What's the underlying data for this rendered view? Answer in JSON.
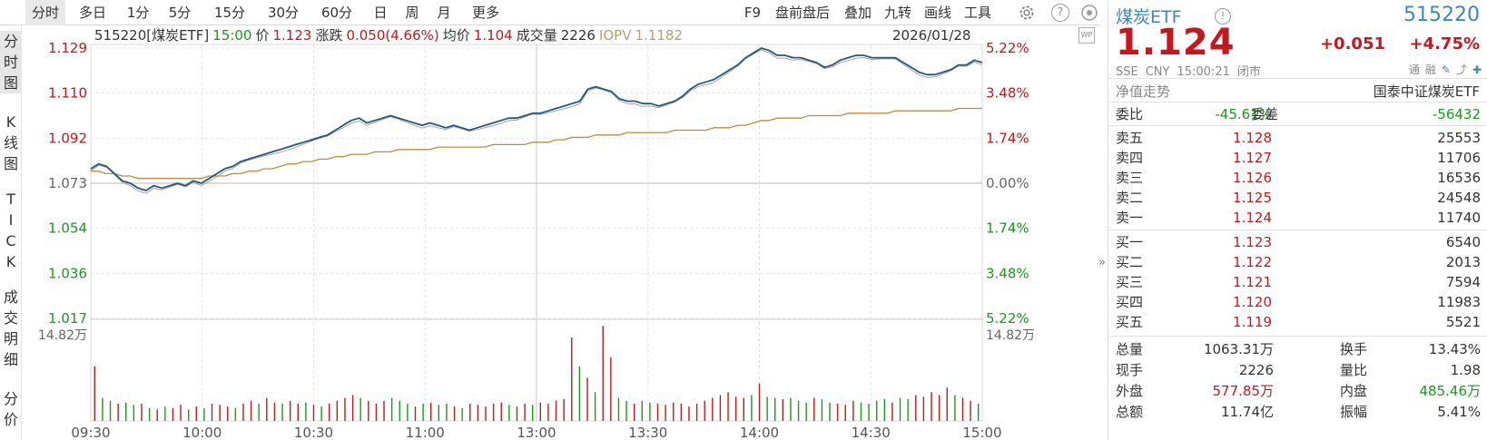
{
  "toolbar": {
    "periods": [
      "分时",
      "多日",
      "1分",
      "5分",
      "15分",
      "30分",
      "60分",
      "日",
      "周",
      "月",
      "更多"
    ],
    "active_period": "分时",
    "tools": [
      "F9",
      "盘前盘后",
      "叠加",
      "九转",
      "画线",
      "工具"
    ],
    "settings_icon": "gear-icon",
    "help_icon": "question-icon",
    "help_text": "?"
  },
  "side_tabs": [
    "分\n时\n图",
    "K\n线\n图",
    "T\nI\nC\nK",
    "成\n交\n明\n细",
    "分\n价"
  ],
  "chart_info": {
    "code_name": "515220[煤炭ETF]",
    "time": "15:00",
    "price_label": "价",
    "price": "1.123",
    "change_label": "涨跌",
    "change": "0.050(4.66%)",
    "avg_label": "均价",
    "avg": "1.104",
    "volume_label": "成交量",
    "volume": "2226",
    "iopv_label": "IOPV",
    "iopv": "1.1182",
    "date": "2026/01/28",
    "wp_badge": "WP"
  },
  "collapse_arrow": "»",
  "colors": {
    "up": "#c8161d",
    "down": "#1a9a1a",
    "price_line": "#1f5a82",
    "avg_line": "#c08a3e",
    "nav_line": "#b89a9a",
    "accent_blue": "#3b86c8"
  },
  "chart_data": {
    "type": "line",
    "x_ticks": [
      "09:30",
      "10:00",
      "10:30",
      "11:00",
      "13:00",
      "13:30",
      "14:00",
      "14:30",
      "15:00"
    ],
    "y_left_ticks": [
      "1.129",
      "1.110",
      "1.092",
      "1.073",
      "1.054",
      "1.036",
      "1.017"
    ],
    "y_right_ticks": [
      "5.22%",
      "3.48%",
      "1.74%",
      "0.00%",
      "1.74%",
      "3.48%",
      "5.22%"
    ],
    "y_range": [
      1.017,
      1.129
    ],
    "prev_close": 1.073,
    "volume_label": "14.82万",
    "grid": true,
    "series": [
      {
        "values": [
          1.079,
          1.081,
          1.08,
          1.077,
          1.074,
          1.073,
          1.071,
          1.07,
          1.072,
          1.071,
          1.072,
          1.073,
          1.072,
          1.074,
          1.073,
          1.075,
          1.077,
          1.079,
          1.08,
          1.082,
          1.083,
          1.084,
          1.085,
          1.086,
          1.087,
          1.088,
          1.089,
          1.09,
          1.091,
          1.092,
          1.093,
          1.095,
          1.097,
          1.099,
          1.1,
          1.098,
          1.099,
          1.1,
          1.101,
          1.1,
          1.099,
          1.098,
          1.097,
          1.098,
          1.097,
          1.096,
          1.097,
          1.096,
          1.095,
          1.096,
          1.097,
          1.098,
          1.099,
          1.1,
          1.1,
          1.101,
          1.102,
          1.102,
          1.103,
          1.104,
          1.105,
          1.106,
          1.107,
          1.112,
          1.113,
          1.112,
          1.111,
          1.108,
          1.107,
          1.107,
          1.106,
          1.106,
          1.105,
          1.106,
          1.107,
          1.109,
          1.112,
          1.114,
          1.115,
          1.116,
          1.118,
          1.12,
          1.122,
          1.125,
          1.127,
          1.129,
          1.128,
          1.126,
          1.126,
          1.125,
          1.125,
          1.124,
          1.123,
          1.121,
          1.122,
          1.124,
          1.125,
          1.126,
          1.126,
          1.125,
          1.125,
          1.125,
          1.125,
          1.123,
          1.121,
          1.119,
          1.118,
          1.118,
          1.119,
          1.12,
          1.122,
          1.122,
          1.124,
          1.123
        ]
      },
      {
        "values": [
          1.078,
          1.078,
          1.077,
          1.077,
          1.076,
          1.076,
          1.075,
          1.075,
          1.075,
          1.075,
          1.075,
          1.075,
          1.075,
          1.075,
          1.075,
          1.076,
          1.076,
          1.076,
          1.077,
          1.077,
          1.078,
          1.078,
          1.079,
          1.079,
          1.08,
          1.081,
          1.081,
          1.082,
          1.082,
          1.083,
          1.083,
          1.084,
          1.084,
          1.085,
          1.085,
          1.085,
          1.086,
          1.086,
          1.086,
          1.087,
          1.087,
          1.087,
          1.087,
          1.087,
          1.088,
          1.088,
          1.088,
          1.088,
          1.088,
          1.088,
          1.088,
          1.089,
          1.089,
          1.089,
          1.089,
          1.089,
          1.09,
          1.09,
          1.09,
          1.091,
          1.091,
          1.092,
          1.092,
          1.092,
          1.093,
          1.093,
          1.093,
          1.093,
          1.094,
          1.094,
          1.094,
          1.094,
          1.094,
          1.094,
          1.095,
          1.095,
          1.095,
          1.095,
          1.095,
          1.096,
          1.096,
          1.096,
          1.097,
          1.097,
          1.098,
          1.099,
          1.099,
          1.1,
          1.1,
          1.1,
          1.1,
          1.101,
          1.101,
          1.101,
          1.101,
          1.101,
          1.102,
          1.102,
          1.102,
          1.102,
          1.102,
          1.102,
          1.103,
          1.103,
          1.103,
          1.103,
          1.103,
          1.103,
          1.103,
          1.103,
          1.104,
          1.104,
          1.104,
          1.104
        ]
      }
    ],
    "volumes": [
      0.95,
      0.4,
      0.35,
      0.3,
      0.32,
      0.28,
      0.3,
      0.22,
      0.2,
      0.25,
      0.22,
      0.28,
      0.2,
      0.25,
      0.22,
      0.3,
      0.28,
      0.25,
      0.22,
      0.3,
      0.35,
      0.3,
      0.4,
      0.32,
      0.3,
      0.35,
      0.3,
      0.32,
      0.28,
      0.25,
      0.3,
      0.35,
      0.4,
      0.45,
      0.4,
      0.35,
      0.3,
      0.35,
      0.4,
      0.35,
      0.3,
      0.25,
      0.3,
      0.32,
      0.28,
      0.3,
      0.25,
      0.22,
      0.3,
      0.28,
      0.25,
      0.3,
      0.32,
      0.28,
      0.25,
      0.3,
      0.28,
      0.32,
      0.3,
      0.35,
      0.38,
      1.45,
      0.95,
      0.75,
      0.5,
      1.65,
      1.1,
      0.4,
      0.35,
      0.3,
      0.35,
      0.32,
      0.3,
      0.28,
      0.32,
      0.3,
      0.25,
      0.3,
      0.35,
      0.4,
      0.45,
      0.5,
      0.42,
      0.4,
      0.45,
      0.65,
      0.42,
      0.4,
      0.38,
      0.4,
      0.35,
      0.32,
      0.4,
      0.38,
      0.32,
      0.3,
      0.28,
      0.35,
      0.32,
      0.3,
      0.35,
      0.38,
      0.32,
      0.4,
      0.38,
      0.45,
      0.42,
      0.5,
      0.45,
      0.58,
      0.45,
      0.4,
      0.35,
      0.3
    ],
    "volume_colors": [
      "r",
      "g",
      "g",
      "r",
      "g",
      "g",
      "r",
      "g",
      "r",
      "g",
      "r",
      "r",
      "g",
      "r",
      "g",
      "r",
      "r",
      "r",
      "g",
      "r",
      "r",
      "g",
      "r",
      "r",
      "g",
      "r",
      "r",
      "g",
      "r",
      "g",
      "r",
      "r",
      "r",
      "r",
      "g",
      "r",
      "r",
      "r",
      "g",
      "g",
      "g",
      "r",
      "g",
      "r",
      "g",
      "g",
      "r",
      "g",
      "r",
      "r",
      "r",
      "r",
      "r",
      "g",
      "r",
      "r",
      "g",
      "r",
      "r",
      "r",
      "r",
      "r",
      "g",
      "r",
      "g",
      "r",
      "r",
      "g",
      "g",
      "r",
      "g",
      "g",
      "r",
      "r",
      "r",
      "r",
      "r",
      "r",
      "r",
      "r",
      "r",
      "r",
      "r",
      "r",
      "g",
      "r",
      "g",
      "g",
      "r",
      "g",
      "g",
      "g",
      "r",
      "g",
      "g",
      "r",
      "r",
      "r",
      "g",
      "g",
      "g",
      "g",
      "r",
      "g",
      "g",
      "r",
      "r",
      "r",
      "r",
      "r",
      "g",
      "r",
      "r",
      "g"
    ]
  },
  "panel": {
    "name": "煤炭ETF",
    "info_icon": "info-icon",
    "info_glyph": "!",
    "code": "515220",
    "price": "1.124",
    "change": "+0.051",
    "pct": "+4.75%",
    "exchange": "SSE",
    "currency": "CNY",
    "time": "15:00:21",
    "status": "闭市",
    "tools": [
      "通",
      "融"
    ],
    "nav_trend": "净值走势",
    "fund_name": "国泰中证煤炭ETF",
    "wb_label": "委比",
    "wb_value": "-45.61%",
    "wc_label": "委差",
    "wc_value": "-56432",
    "asks": [
      {
        "label": "卖五",
        "price": "1.128",
        "vol": "25553"
      },
      {
        "label": "卖四",
        "price": "1.127",
        "vol": "11706"
      },
      {
        "label": "卖三",
        "price": "1.126",
        "vol": "16536"
      },
      {
        "label": "卖二",
        "price": "1.125",
        "vol": "24548"
      },
      {
        "label": "卖一",
        "price": "1.124",
        "vol": "11740"
      }
    ],
    "bids": [
      {
        "label": "买一",
        "price": "1.123",
        "vol": "6540"
      },
      {
        "label": "买二",
        "price": "1.122",
        "vol": "2013"
      },
      {
        "label": "买三",
        "price": "1.121",
        "vol": "7594"
      },
      {
        "label": "买四",
        "price": "1.120",
        "vol": "11983"
      },
      {
        "label": "买五",
        "price": "1.119",
        "vol": "5521"
      }
    ],
    "stats": [
      {
        "l": "总量",
        "lv": "1063.31万",
        "r": "换手",
        "rv": "13.43%",
        "lc": "",
        "rc": ""
      },
      {
        "l": "现手",
        "lv": "2226",
        "r": "量比",
        "rv": "1.98",
        "lc": "",
        "rc": ""
      },
      {
        "l": "外盘",
        "lv": "577.85万",
        "r": "内盘",
        "rv": "485.46万",
        "lc": "red",
        "rc": "green"
      },
      {
        "l": "总额",
        "lv": "11.74亿",
        "r": "振幅",
        "rv": "5.41%",
        "lc": "",
        "rc": ""
      }
    ]
  }
}
